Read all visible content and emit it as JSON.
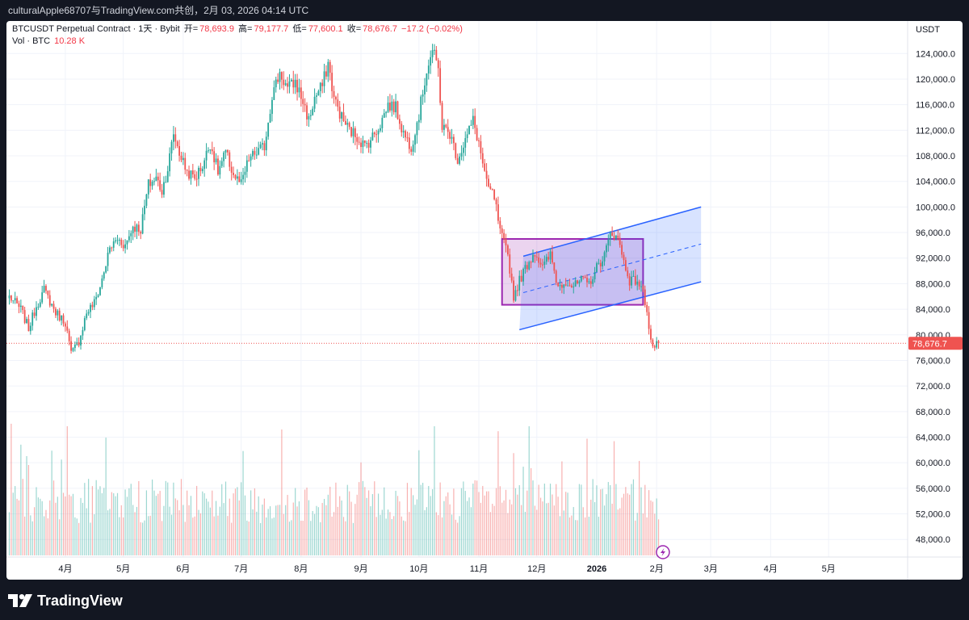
{
  "topbar": {
    "text": "culturalApple68707与TradingView.com共创，2月 03, 2026 04:14 UTC"
  },
  "legend": {
    "symbol": "BTCUSDT Perpetual Contract · 1天 · Bybit",
    "open_label": "开=",
    "open": "78,693.9",
    "high_label": "高=",
    "high": "79,177.7",
    "low_label": "低=",
    "low": "77,600.1",
    "close_label": "收=",
    "close": "78,676.7",
    "change": "−17.2 (−0.02%)",
    "vol_label": "Vol · BTC",
    "vol_value": "10.28 K"
  },
  "price_axis": {
    "currency": "USDT",
    "current_price_label": "78,676.7"
  },
  "footer": {
    "brand": "TradingView"
  },
  "colors": {
    "up": "#26a69a",
    "down": "#ef5350",
    "channel": "#2962ff",
    "box": "#9c27b0"
  },
  "chart_data": {
    "type": "candlestick",
    "title": "BTCUSDT Perpetual Contract · 1天 · Bybit",
    "ylabel": "USDT",
    "ylim": [
      45000,
      128000
    ],
    "y_ticks": [
      48000,
      52000,
      56000,
      60000,
      64000,
      68000,
      72000,
      76000,
      80000,
      84000,
      88000,
      92000,
      96000,
      100000,
      104000,
      108000,
      112000,
      116000,
      120000,
      124000
    ],
    "x_tick_labels": [
      "4月",
      "5月",
      "6月",
      "7月",
      "8月",
      "9月",
      "10月",
      "11月",
      "12月",
      "2026",
      "2月",
      "3月",
      "4月",
      "5月"
    ],
    "x_tick_days": [
      29,
      59,
      90,
      120,
      151,
      182,
      212,
      243,
      273,
      304,
      335,
      363,
      394,
      424
    ],
    "start_date": "2025-03-03",
    "bar_count": 337,
    "current_price": 78676.7,
    "anchors": [
      {
        "day": 0,
        "price": 86000
      },
      {
        "day": 6,
        "price": 84000
      },
      {
        "day": 10,
        "price": 81000
      },
      {
        "day": 14,
        "price": 84500
      },
      {
        "day": 18,
        "price": 87000
      },
      {
        "day": 24,
        "price": 83500
      },
      {
        "day": 29,
        "price": 82000
      },
      {
        "day": 32,
        "price": 77000
      },
      {
        "day": 36,
        "price": 79000
      },
      {
        "day": 40,
        "price": 83500
      },
      {
        "day": 44,
        "price": 85000
      },
      {
        "day": 47,
        "price": 87500
      },
      {
        "day": 52,
        "price": 93500
      },
      {
        "day": 56,
        "price": 95000
      },
      {
        "day": 60,
        "price": 94000
      },
      {
        "day": 64,
        "price": 97000
      },
      {
        "day": 68,
        "price": 96500
      },
      {
        "day": 72,
        "price": 103500
      },
      {
        "day": 76,
        "price": 104500
      },
      {
        "day": 79,
        "price": 102500
      },
      {
        "day": 82,
        "price": 106000
      },
      {
        "day": 85,
        "price": 111500
      },
      {
        "day": 88,
        "price": 108500
      },
      {
        "day": 92,
        "price": 105500
      },
      {
        "day": 96,
        "price": 104500
      },
      {
        "day": 100,
        "price": 106500
      },
      {
        "day": 104,
        "price": 110000
      },
      {
        "day": 108,
        "price": 105500
      },
      {
        "day": 112,
        "price": 108500
      },
      {
        "day": 116,
        "price": 105000
      },
      {
        "day": 120,
        "price": 103500
      },
      {
        "day": 124,
        "price": 107500
      },
      {
        "day": 128,
        "price": 108500
      },
      {
        "day": 132,
        "price": 109500
      },
      {
        "day": 136,
        "price": 117500
      },
      {
        "day": 140,
        "price": 121000
      },
      {
        "day": 144,
        "price": 118500
      },
      {
        "day": 148,
        "price": 119500
      },
      {
        "day": 152,
        "price": 116500
      },
      {
        "day": 155,
        "price": 113500
      },
      {
        "day": 158,
        "price": 117000
      },
      {
        "day": 162,
        "price": 119000
      },
      {
        "day": 165,
        "price": 122500
      },
      {
        "day": 168,
        "price": 117000
      },
      {
        "day": 172,
        "price": 114000
      },
      {
        "day": 176,
        "price": 112000
      },
      {
        "day": 180,
        "price": 111000
      },
      {
        "day": 184,
        "price": 109500
      },
      {
        "day": 188,
        "price": 111000
      },
      {
        "day": 192,
        "price": 113000
      },
      {
        "day": 196,
        "price": 116000
      },
      {
        "day": 200,
        "price": 115500
      },
      {
        "day": 204,
        "price": 111500
      },
      {
        "day": 208,
        "price": 109500
      },
      {
        "day": 212,
        "price": 114500
      },
      {
        "day": 216,
        "price": 121500
      },
      {
        "day": 219,
        "price": 124500
      },
      {
        "day": 222,
        "price": 121500
      },
      {
        "day": 224,
        "price": 112500
      },
      {
        "day": 228,
        "price": 111500
      },
      {
        "day": 232,
        "price": 107500
      },
      {
        "day": 236,
        "price": 110500
      },
      {
        "day": 240,
        "price": 113500
      },
      {
        "day": 243,
        "price": 110000
      },
      {
        "day": 247,
        "price": 103500
      },
      {
        "day": 251,
        "price": 101500
      },
      {
        "day": 254,
        "price": 96000
      },
      {
        "day": 258,
        "price": 92500
      },
      {
        "day": 261,
        "price": 86000
      },
      {
        "day": 264,
        "price": 88500
      },
      {
        "day": 268,
        "price": 91000
      },
      {
        "day": 272,
        "price": 93000
      },
      {
        "day": 276,
        "price": 90500
      },
      {
        "day": 280,
        "price": 92500
      },
      {
        "day": 284,
        "price": 87500
      },
      {
        "day": 288,
        "price": 88500
      },
      {
        "day": 292,
        "price": 87500
      },
      {
        "day": 296,
        "price": 88500
      },
      {
        "day": 300,
        "price": 88000
      },
      {
        "day": 304,
        "price": 90500
      },
      {
        "day": 308,
        "price": 92500
      },
      {
        "day": 311,
        "price": 95500
      },
      {
        "day": 314,
        "price": 96000
      },
      {
        "day": 318,
        "price": 91500
      },
      {
        "day": 321,
        "price": 88500
      },
      {
        "day": 325,
        "price": 88500
      },
      {
        "day": 328,
        "price": 86500
      },
      {
        "day": 330,
        "price": 84000
      },
      {
        "day": 332,
        "price": 79000
      },
      {
        "day": 334,
        "price": 78000
      },
      {
        "day": 336,
        "price": 78676.7
      }
    ],
    "annotations": {
      "rising_channel": {
        "upper": [
          {
            "day": 266,
            "price": 92300
          },
          {
            "day": 358,
            "price": 100000
          }
        ],
        "lower": [
          {
            "day": 264,
            "price": 80800
          },
          {
            "day": 358,
            "price": 88300
          }
        ],
        "mid_dashed": [
          {
            "day": 266,
            "price": 86600
          },
          {
            "day": 358,
            "price": 94200
          }
        ]
      },
      "range_box": {
        "day_start": 255,
        "day_end": 328,
        "price_top": 95000,
        "price_bottom": 84700
      }
    },
    "volume": {
      "label": "Vol · BTC",
      "last": "10.28 K"
    }
  }
}
